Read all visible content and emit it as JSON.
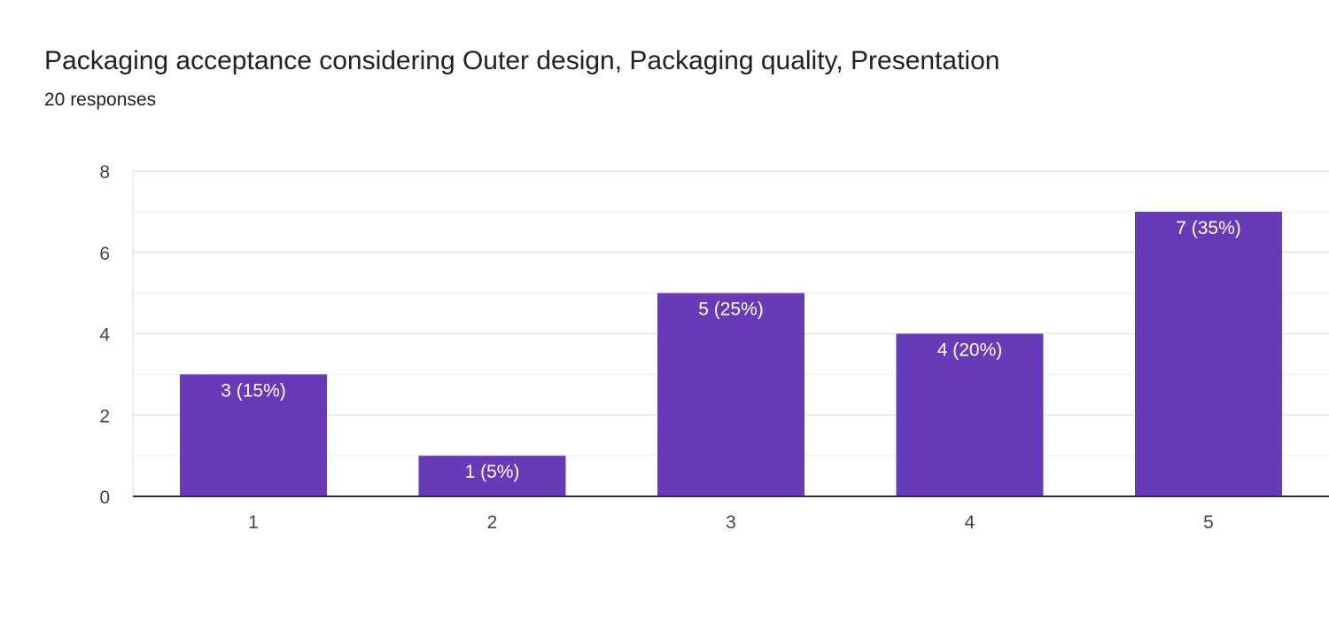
{
  "chart_data": {
    "type": "bar",
    "title": "Packaging acceptance considering Outer design, Packaging quality, Presentation",
    "subtitle": "20 responses",
    "categories": [
      "1",
      "2",
      "3",
      "4",
      "5"
    ],
    "values": [
      3,
      1,
      5,
      4,
      7
    ],
    "data_labels": [
      "3 (15%)",
      "1 (5%)",
      "5 (25%)",
      "4 (20%)",
      "7 (35%)"
    ],
    "yticks": [
      "0",
      "2",
      "4",
      "6",
      "8"
    ],
    "ylim": [
      0,
      8
    ],
    "xlabel": "",
    "ylabel": "",
    "grid": true,
    "bar_color": "#673ab7"
  }
}
